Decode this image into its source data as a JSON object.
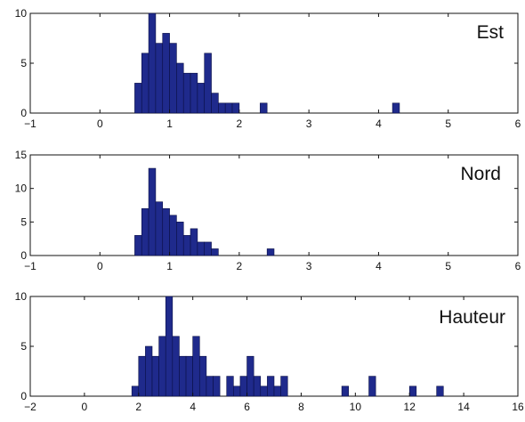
{
  "chart_data": [
    {
      "type": "bar",
      "title": "Est",
      "xlabel": "",
      "ylabel": "",
      "xlim": [
        -1,
        6
      ],
      "ylim": [
        0,
        10
      ],
      "xticks": [
        -1,
        0,
        1,
        2,
        3,
        4,
        5,
        6
      ],
      "yticks": [
        0,
        5,
        10
      ],
      "bin_width": 0.1,
      "color": "#1f2a8c",
      "bins": [
        {
          "x": 0.55,
          "value": 3
        },
        {
          "x": 0.65,
          "value": 6
        },
        {
          "x": 0.75,
          "value": 10
        },
        {
          "x": 0.85,
          "value": 7
        },
        {
          "x": 0.95,
          "value": 8
        },
        {
          "x": 1.05,
          "value": 7
        },
        {
          "x": 1.15,
          "value": 5
        },
        {
          "x": 1.25,
          "value": 4
        },
        {
          "x": 1.35,
          "value": 4
        },
        {
          "x": 1.45,
          "value": 3
        },
        {
          "x": 1.55,
          "value": 6
        },
        {
          "x": 1.65,
          "value": 2
        },
        {
          "x": 1.75,
          "value": 1
        },
        {
          "x": 1.85,
          "value": 1
        },
        {
          "x": 1.95,
          "value": 1
        },
        {
          "x": 2.35,
          "value": 1
        },
        {
          "x": 4.25,
          "value": 1
        }
      ]
    },
    {
      "type": "bar",
      "title": "Nord",
      "xlabel": "",
      "ylabel": "",
      "xlim": [
        -1,
        6
      ],
      "ylim": [
        0,
        15
      ],
      "xticks": [
        -1,
        0,
        1,
        2,
        3,
        4,
        5,
        6
      ],
      "yticks": [
        0,
        5,
        10,
        15
      ],
      "bin_width": 0.1,
      "color": "#1f2a8c",
      "bins": [
        {
          "x": 0.55,
          "value": 3
        },
        {
          "x": 0.65,
          "value": 7
        },
        {
          "x": 0.75,
          "value": 13
        },
        {
          "x": 0.85,
          "value": 8
        },
        {
          "x": 0.95,
          "value": 7
        },
        {
          "x": 1.05,
          "value": 6
        },
        {
          "x": 1.15,
          "value": 5
        },
        {
          "x": 1.25,
          "value": 3
        },
        {
          "x": 1.35,
          "value": 4
        },
        {
          "x": 1.45,
          "value": 2
        },
        {
          "x": 1.55,
          "value": 2
        },
        {
          "x": 1.65,
          "value": 1
        },
        {
          "x": 2.45,
          "value": 1
        }
      ]
    },
    {
      "type": "bar",
      "title": "Hauteur",
      "xlabel": "",
      "ylabel": "",
      "xlim": [
        -2,
        16
      ],
      "ylim": [
        0,
        10
      ],
      "xticks": [
        -2,
        0,
        2,
        4,
        6,
        8,
        10,
        12,
        14,
        16
      ],
      "yticks": [
        0,
        5,
        10
      ],
      "bin_width": 0.25,
      "color": "#1f2a8c",
      "bins": [
        {
          "x": 1.875,
          "value": 1
        },
        {
          "x": 2.125,
          "value": 4
        },
        {
          "x": 2.375,
          "value": 5
        },
        {
          "x": 2.625,
          "value": 4
        },
        {
          "x": 2.875,
          "value": 6
        },
        {
          "x": 3.125,
          "value": 10
        },
        {
          "x": 3.375,
          "value": 6
        },
        {
          "x": 3.625,
          "value": 4
        },
        {
          "x": 3.875,
          "value": 4
        },
        {
          "x": 4.125,
          "value": 6
        },
        {
          "x": 4.375,
          "value": 4
        },
        {
          "x": 4.625,
          "value": 2
        },
        {
          "x": 4.875,
          "value": 2
        },
        {
          "x": 5.375,
          "value": 2
        },
        {
          "x": 5.625,
          "value": 1
        },
        {
          "x": 5.875,
          "value": 2
        },
        {
          "x": 6.125,
          "value": 4
        },
        {
          "x": 6.375,
          "value": 2
        },
        {
          "x": 6.625,
          "value": 1
        },
        {
          "x": 6.875,
          "value": 2
        },
        {
          "x": 7.125,
          "value": 1
        },
        {
          "x": 7.375,
          "value": 2
        },
        {
          "x": 9.625,
          "value": 1
        },
        {
          "x": 10.625,
          "value": 2
        },
        {
          "x": 12.125,
          "value": 1
        },
        {
          "x": 13.125,
          "value": 1
        }
      ]
    }
  ]
}
